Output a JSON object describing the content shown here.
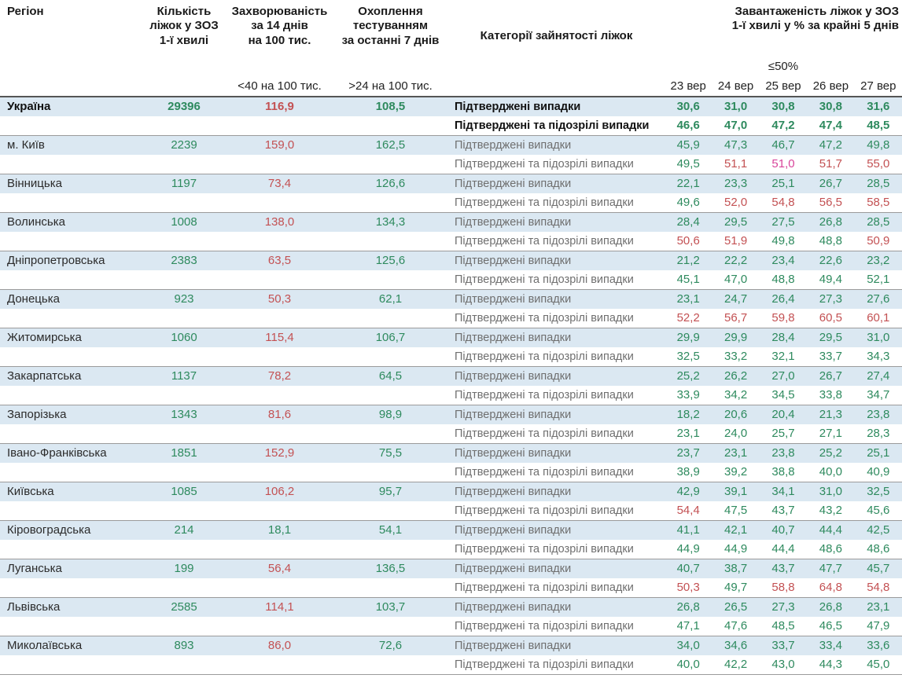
{
  "colors": {
    "g": "#2e8a5e",
    "r": "#c35153",
    "p": "#d8459b",
    "row_highlight": "#dbe8f2"
  },
  "header": {
    "region": "Регіон",
    "beds": "Кількість\nліжок у ЗОЗ\n1-ї хвилі",
    "incidence": "Захворюваність\nза 14 днів\nна 100 тис.",
    "testing": "Охоплення\nтестуванням\nза останні 7 днів",
    "category": "Категорії зайнятості ліжок",
    "load": "Завантаженість ліжок у ЗОЗ\n1-ї хвилі у % за крайні 5 днів",
    "th_incidence": "<40 на 100 тис.",
    "th_testing": ">24 на 100 тис.",
    "th_load": "≤50%",
    "dates": [
      "23 вер",
      "24 вер",
      "25 вер",
      "26 вер",
      "27 вер"
    ]
  },
  "row_labels": {
    "confirmed": "Підтверджені випадки",
    "confirmed_suspected": "Підтверджені та підозрілі випадки"
  },
  "chart_data": {
    "type": "table",
    "date_columns": [
      "23 вер",
      "24 вер",
      "25 вер",
      "26 вер",
      "27 вер"
    ],
    "criteria": {
      "incidence": "<40 на 100 тис.",
      "testing": ">24 на 100 тис.",
      "load": "≤50%"
    },
    "regions": [
      {
        "name": "Україна",
        "bold": true,
        "beds": "29396",
        "incidence": "116,9",
        "incidence_color": "r",
        "testing": "108,5",
        "confirmed": [
          "30,6",
          "31,0",
          "30,8",
          "30,8",
          "31,6"
        ],
        "confirmed_colors": [
          "g",
          "g",
          "g",
          "g",
          "g"
        ],
        "suspected": [
          "46,6",
          "47,0",
          "47,2",
          "47,4",
          "48,5"
        ],
        "suspected_colors": [
          "g",
          "g",
          "g",
          "g",
          "g"
        ]
      },
      {
        "name": "м. Київ",
        "bold": false,
        "beds": "2239",
        "incidence": "159,0",
        "incidence_color": "r",
        "testing": "162,5",
        "confirmed": [
          "45,9",
          "47,3",
          "46,7",
          "47,2",
          "49,8"
        ],
        "confirmed_colors": [
          "g",
          "g",
          "g",
          "g",
          "g"
        ],
        "suspected": [
          "49,5",
          "51,1",
          "51,0",
          "51,7",
          "55,0"
        ],
        "suspected_colors": [
          "g",
          "r",
          "p",
          "r",
          "r"
        ]
      },
      {
        "name": "Вінницька",
        "bold": false,
        "beds": "1197",
        "incidence": "73,4",
        "incidence_color": "r",
        "testing": "126,6",
        "confirmed": [
          "22,1",
          "23,3",
          "25,1",
          "26,7",
          "28,5"
        ],
        "confirmed_colors": [
          "g",
          "g",
          "g",
          "g",
          "g"
        ],
        "suspected": [
          "49,6",
          "52,0",
          "54,8",
          "56,5",
          "58,5"
        ],
        "suspected_colors": [
          "g",
          "r",
          "r",
          "r",
          "r"
        ]
      },
      {
        "name": "Волинська",
        "bold": false,
        "beds": "1008",
        "incidence": "138,0",
        "incidence_color": "r",
        "testing": "134,3",
        "confirmed": [
          "28,4",
          "29,5",
          "27,5",
          "26,8",
          "28,5"
        ],
        "confirmed_colors": [
          "g",
          "g",
          "g",
          "g",
          "g"
        ],
        "suspected": [
          "50,6",
          "51,9",
          "49,8",
          "48,8",
          "50,9"
        ],
        "suspected_colors": [
          "r",
          "r",
          "g",
          "g",
          "r"
        ]
      },
      {
        "name": "Дніпропетровська",
        "bold": false,
        "beds": "2383",
        "incidence": "63,5",
        "incidence_color": "r",
        "testing": "125,6",
        "confirmed": [
          "21,2",
          "22,2",
          "23,4",
          "22,6",
          "23,2"
        ],
        "confirmed_colors": [
          "g",
          "g",
          "g",
          "g",
          "g"
        ],
        "suspected": [
          "45,1",
          "47,0",
          "48,8",
          "49,4",
          "52,1"
        ],
        "suspected_colors": [
          "g",
          "g",
          "g",
          "g",
          "g"
        ]
      },
      {
        "name": "Донецька",
        "bold": false,
        "beds": "923",
        "incidence": "50,3",
        "incidence_color": "r",
        "testing": "62,1",
        "confirmed": [
          "23,1",
          "24,7",
          "26,4",
          "27,3",
          "27,6"
        ],
        "confirmed_colors": [
          "g",
          "g",
          "g",
          "g",
          "g"
        ],
        "suspected": [
          "52,2",
          "56,7",
          "59,8",
          "60,5",
          "60,1"
        ],
        "suspected_colors": [
          "r",
          "r",
          "r",
          "r",
          "r"
        ]
      },
      {
        "name": "Житомирська",
        "bold": false,
        "beds": "1060",
        "incidence": "115,4",
        "incidence_color": "r",
        "testing": "106,7",
        "confirmed": [
          "29,9",
          "29,9",
          "28,4",
          "29,5",
          "31,0"
        ],
        "confirmed_colors": [
          "g",
          "g",
          "g",
          "g",
          "g"
        ],
        "suspected": [
          "32,5",
          "33,2",
          "32,1",
          "33,7",
          "34,3"
        ],
        "suspected_colors": [
          "g",
          "g",
          "g",
          "g",
          "g"
        ]
      },
      {
        "name": "Закарпатська",
        "bold": false,
        "beds": "1137",
        "incidence": "78,2",
        "incidence_color": "r",
        "testing": "64,5",
        "confirmed": [
          "25,2",
          "26,2",
          "27,0",
          "26,7",
          "27,4"
        ],
        "confirmed_colors": [
          "g",
          "g",
          "g",
          "g",
          "g"
        ],
        "suspected": [
          "33,9",
          "34,2",
          "34,5",
          "33,8",
          "34,7"
        ],
        "suspected_colors": [
          "g",
          "g",
          "g",
          "g",
          "g"
        ]
      },
      {
        "name": "Запорізька",
        "bold": false,
        "beds": "1343",
        "incidence": "81,6",
        "incidence_color": "r",
        "testing": "98,9",
        "confirmed": [
          "18,2",
          "20,6",
          "20,4",
          "21,3",
          "23,8"
        ],
        "confirmed_colors": [
          "g",
          "g",
          "g",
          "g",
          "g"
        ],
        "suspected": [
          "23,1",
          "24,0",
          "25,7",
          "27,1",
          "28,3"
        ],
        "suspected_colors": [
          "g",
          "g",
          "g",
          "g",
          "g"
        ]
      },
      {
        "name": "Івано-Франківська",
        "bold": false,
        "beds": "1851",
        "incidence": "152,9",
        "incidence_color": "r",
        "testing": "75,5",
        "confirmed": [
          "23,7",
          "23,1",
          "23,8",
          "25,2",
          "25,1"
        ],
        "confirmed_colors": [
          "g",
          "g",
          "g",
          "g",
          "g"
        ],
        "suspected": [
          "38,9",
          "39,2",
          "38,8",
          "40,0",
          "40,9"
        ],
        "suspected_colors": [
          "g",
          "g",
          "g",
          "g",
          "g"
        ]
      },
      {
        "name": "Київська",
        "bold": false,
        "beds": "1085",
        "incidence": "106,2",
        "incidence_color": "r",
        "testing": "95,7",
        "confirmed": [
          "42,9",
          "39,1",
          "34,1",
          "31,0",
          "32,5"
        ],
        "confirmed_colors": [
          "g",
          "g",
          "g",
          "g",
          "g"
        ],
        "suspected": [
          "54,4",
          "47,5",
          "43,7",
          "43,2",
          "45,6"
        ],
        "suspected_colors": [
          "r",
          "g",
          "g",
          "g",
          "g"
        ]
      },
      {
        "name": "Кіровоградська",
        "bold": false,
        "beds": "214",
        "incidence": "18,1",
        "incidence_color": "g",
        "testing": "54,1",
        "confirmed": [
          "41,1",
          "42,1",
          "40,7",
          "44,4",
          "42,5"
        ],
        "confirmed_colors": [
          "g",
          "g",
          "g",
          "g",
          "g"
        ],
        "suspected": [
          "44,9",
          "44,9",
          "44,4",
          "48,6",
          "48,6"
        ],
        "suspected_colors": [
          "g",
          "g",
          "g",
          "g",
          "g"
        ]
      },
      {
        "name": "Луганська",
        "bold": false,
        "beds": "199",
        "incidence": "56,4",
        "incidence_color": "r",
        "testing": "136,5",
        "confirmed": [
          "40,7",
          "38,7",
          "43,7",
          "47,7",
          "45,7"
        ],
        "confirmed_colors": [
          "g",
          "g",
          "g",
          "g",
          "g"
        ],
        "suspected": [
          "50,3",
          "49,7",
          "58,8",
          "64,8",
          "54,8"
        ],
        "suspected_colors": [
          "r",
          "g",
          "r",
          "r",
          "r"
        ]
      },
      {
        "name": "Львівська",
        "bold": false,
        "beds": "2585",
        "incidence": "114,1",
        "incidence_color": "r",
        "testing": "103,7",
        "confirmed": [
          "26,8",
          "26,5",
          "27,3",
          "26,8",
          "23,1"
        ],
        "confirmed_colors": [
          "g",
          "g",
          "g",
          "g",
          "g"
        ],
        "suspected": [
          "47,1",
          "47,6",
          "48,5",
          "46,5",
          "47,9"
        ],
        "suspected_colors": [
          "g",
          "g",
          "g",
          "g",
          "g"
        ]
      },
      {
        "name": "Миколаївська",
        "bold": false,
        "beds": "893",
        "incidence": "86,0",
        "incidence_color": "r",
        "testing": "72,6",
        "confirmed": [
          "34,0",
          "34,6",
          "33,7",
          "33,4",
          "33,6"
        ],
        "confirmed_colors": [
          "g",
          "g",
          "g",
          "g",
          "g"
        ],
        "suspected": [
          "40,0",
          "42,2",
          "43,0",
          "44,3",
          "45,0"
        ],
        "suspected_colors": [
          "g",
          "g",
          "g",
          "g",
          "g"
        ]
      }
    ]
  }
}
